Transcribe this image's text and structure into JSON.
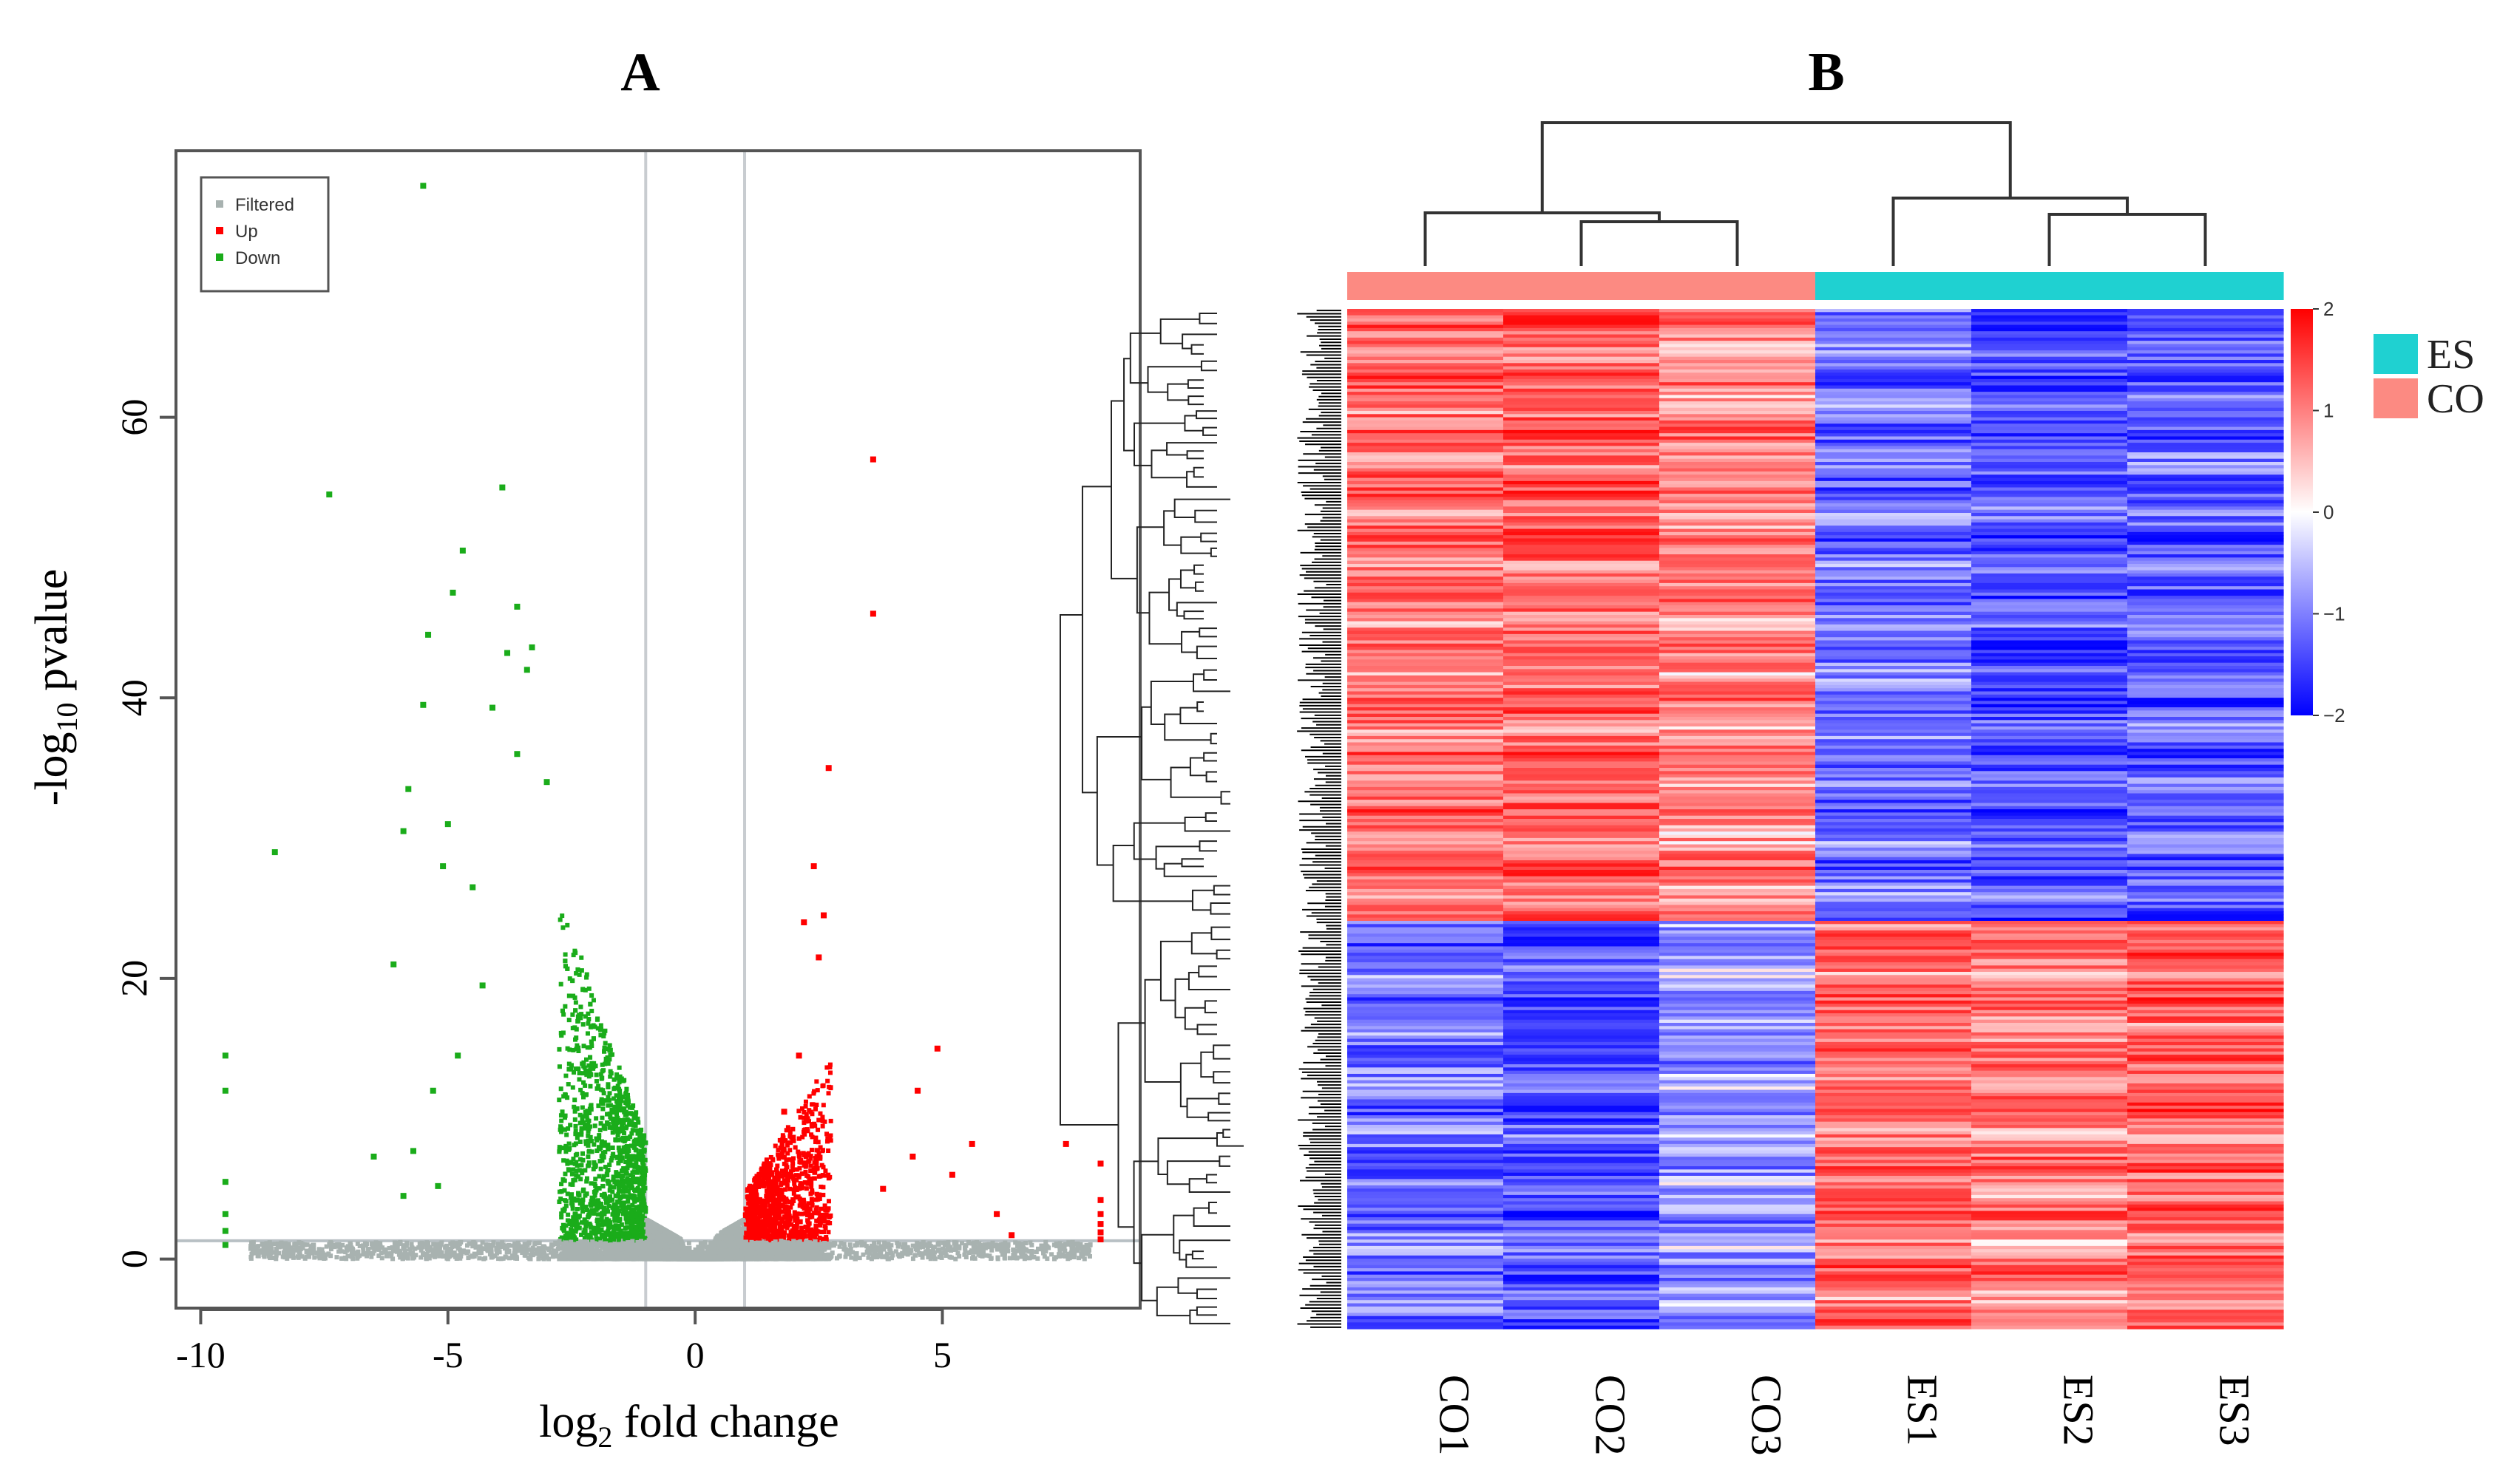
{
  "panel_a": {
    "letter": "A",
    "legend": [
      "Filtered",
      "Up",
      "Down"
    ],
    "colors": {
      "filtered": "#a8b2b0",
      "up": "#ff0000",
      "down": "#1aac1a"
    }
  },
  "panel_b": {
    "letter": "B",
    "colorbar_colors": {
      "low": "#0000ff",
      "mid": "#ffffff",
      "high": "#ff0000"
    },
    "group_colors": {
      "ES": "#1fd1d1",
      "CO": "#fc8a82"
    }
  },
  "chart_data": [
    {
      "type": "scatter",
      "title": "",
      "xlabel_main": "log",
      "xlabel_sub": "2",
      "xlabel_rest": " fold change",
      "ylabel_pre": "-log",
      "ylabel_sub": "10",
      "ylabel_rest": " pvalue",
      "xlim": [
        -10.5,
        9
      ],
      "ylim": [
        -3.5,
        79
      ],
      "xticks": [
        -10,
        -5,
        0,
        5
      ],
      "xtick_labels": [
        "-10",
        "-5",
        "0",
        "5"
      ],
      "yticks": [
        0,
        20,
        40,
        60
      ],
      "ytick_labels": [
        "0",
        "20",
        "40",
        "60"
      ],
      "fold_change_thresholds": [
        -1,
        1
      ],
      "pvalue_threshold": 1.3,
      "legend_placement": "top-left",
      "series": [
        {
          "name": "Filtered",
          "note": "dense grey V-shaped cloud near 0"
        },
        {
          "name": "Up",
          "points": [
            [
              3.6,
              57
            ],
            [
              3.6,
              46
            ],
            [
              2.7,
              35
            ],
            [
              2.4,
              28
            ],
            [
              2.6,
              24.5
            ],
            [
              2.2,
              24
            ],
            [
              2.5,
              21.5
            ],
            [
              4.9,
              15
            ],
            [
              4.5,
              12
            ],
            [
              5.6,
              8.2
            ],
            [
              7.5,
              8.2
            ],
            [
              4.4,
              7.3
            ],
            [
              8.2,
              6.8
            ],
            [
              5.2,
              6
            ],
            [
              3.8,
              5
            ],
            [
              6.1,
              3.2
            ],
            [
              6.4,
              1.7
            ],
            [
              8.2,
              4.2
            ],
            [
              8.2,
              3.2
            ],
            [
              8.2,
              2.5
            ],
            [
              8.2,
              1.9
            ],
            [
              8.2,
              1.4
            ],
            [
              1.4,
              6
            ],
            [
              1.8,
              10.5
            ],
            [
              2.1,
              14.5
            ]
          ]
        },
        {
          "name": "Down",
          "points": [
            [
              -5.5,
              76.5
            ],
            [
              -7.4,
              54.5
            ],
            [
              -3.9,
              55
            ],
            [
              -4.7,
              50.5
            ],
            [
              -4.9,
              47.5
            ],
            [
              -3.6,
              46.5
            ],
            [
              -5.4,
              44.5
            ],
            [
              -3.8,
              43.2
            ],
            [
              -3.3,
              43.6
            ],
            [
              -3.4,
              42
            ],
            [
              -5.5,
              39.5
            ],
            [
              -4.1,
              39.3
            ],
            [
              -3.6,
              36
            ],
            [
              -3.0,
              34
            ],
            [
              -5.8,
              33.5
            ],
            [
              -8.5,
              29
            ],
            [
              -5.9,
              30.5
            ],
            [
              -5.0,
              31
            ],
            [
              -5.1,
              28
            ],
            [
              -4.5,
              26.5
            ],
            [
              -6.1,
              21
            ],
            [
              -4.3,
              19.5
            ],
            [
              -4.8,
              14.5
            ],
            [
              -5.3,
              12
            ],
            [
              -6.5,
              7.3
            ],
            [
              -5.7,
              7.7
            ],
            [
              -9.5,
              14.5
            ],
            [
              -9.5,
              12
            ],
            [
              -9.5,
              5.5
            ],
            [
              -9.5,
              3.2
            ],
            [
              -9.5,
              2
            ],
            [
              -9.5,
              1
            ],
            [
              -5.9,
              4.5
            ],
            [
              -5.2,
              5.2
            ]
          ]
        }
      ]
    },
    {
      "type": "heatmap",
      "columns": [
        "CO1",
        "CO2",
        "CO3",
        "ES1",
        "ES2",
        "ES3"
      ],
      "column_groups": [
        "CO",
        "CO",
        "CO",
        "ES",
        "ES",
        "ES"
      ],
      "legend_entries": [
        "ES",
        "CO"
      ],
      "colorbar_range": [
        -2,
        2
      ],
      "colorbar_ticks": [
        2,
        1,
        0,
        -1,
        -2
      ],
      "colorbar_tick_labels": [
        "2",
        "1",
        "0",
        "−1",
        "−2"
      ],
      "clusters": [
        {
          "name": "CO-high cluster",
          "fraction_of_rows": 0.6,
          "mean_z": [
            1.0,
            1.1,
            0.8,
            -1.0,
            -1.2,
            -1.1
          ]
        },
        {
          "name": "ES-high cluster",
          "fraction_of_rows": 0.4,
          "mean_z": [
            -1.0,
            -1.2,
            -0.7,
            1.0,
            0.9,
            1.1
          ]
        }
      ],
      "column_dendrogram": "((CO1,(CO2,CO3)),(ES1,(ES2,ES3)))"
    }
  ]
}
